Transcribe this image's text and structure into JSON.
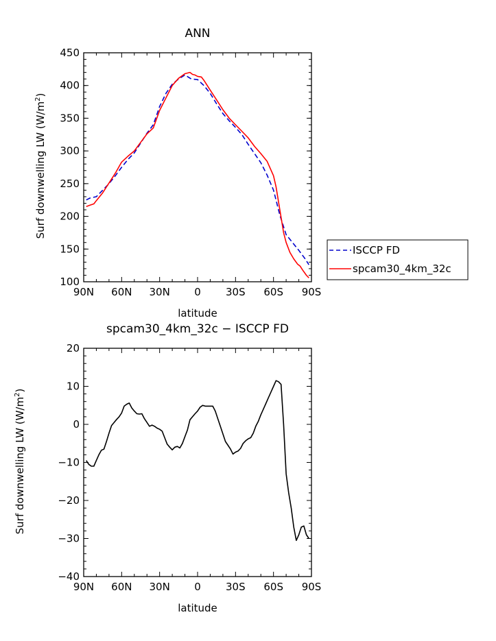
{
  "chart_data": [
    {
      "type": "line",
      "title": "ANN",
      "xlabel": "latitude",
      "ylabel": "Surf downwelling LW (W/m²)",
      "ylabel_base": "Surf downwelling LW (W/m",
      "ylabel_sup": "2",
      "ylabel_close": ")",
      "xlim": [
        90,
        -90
      ],
      "ylim": [
        100,
        450
      ],
      "x_ticks": [
        90,
        60,
        30,
        0,
        -30,
        -60,
        -90
      ],
      "x_tick_labels": [
        "90N",
        "60N",
        "30N",
        "0",
        "30S",
        "60S",
        "90S"
      ],
      "y_ticks": [
        100,
        150,
        200,
        250,
        300,
        350,
        400,
        450
      ],
      "y_tick_labels": [
        "100",
        "150",
        "200",
        "250",
        "300",
        "350",
        "400",
        "450"
      ],
      "legend_position": "outside-right",
      "series": [
        {
          "name": "ISCCP FD",
          "color": "#0000cc",
          "style": "dashed",
          "x": [
            88,
            85,
            80,
            75,
            70,
            65,
            60,
            55,
            50,
            45,
            40,
            35,
            30,
            25,
            20,
            15,
            10,
            5,
            0,
            -5,
            -10,
            -15,
            -20,
            -25,
            -30,
            -35,
            -40,
            -45,
            -50,
            -55,
            -60,
            -65,
            -70,
            -75,
            -80,
            -85,
            -88
          ],
          "values": [
            225,
            228,
            230,
            240,
            250,
            262,
            275,
            287,
            297,
            312,
            327,
            340,
            368,
            388,
            402,
            410,
            416,
            410,
            409,
            400,
            388,
            372,
            357,
            346,
            336,
            325,
            310,
            296,
            282,
            263,
            240,
            202,
            172,
            160,
            148,
            135,
            126
          ]
        },
        {
          "name": "spcam30_4km_32c",
          "color": "#ff0000",
          "style": "solid",
          "x": [
            88,
            85,
            82,
            80,
            75,
            70,
            65,
            60,
            55,
            50,
            45,
            40,
            35,
            30,
            25,
            20,
            15,
            10,
            6,
            4,
            2,
            0,
            -3,
            -5,
            -10,
            -15,
            -20,
            -25,
            -30,
            -35,
            -40,
            -45,
            -50,
            -55,
            -60,
            -62,
            -65,
            -68,
            -70,
            -73,
            -76,
            -79,
            -81,
            -83,
            -86,
            -88
          ],
          "values": [
            215,
            217,
            219,
            224,
            236,
            251,
            266,
            283,
            292,
            300,
            313,
            326,
            335,
            362,
            381,
            400,
            411,
            418,
            420,
            417,
            416,
            414,
            413,
            408,
            393,
            378,
            363,
            350,
            340,
            330,
            320,
            307,
            296,
            284,
            262,
            245,
            210,
            175,
            160,
            145,
            135,
            127,
            124,
            118,
            110,
            106
          ]
        }
      ]
    },
    {
      "type": "line",
      "title": "spcam30_4km_32c − ISCCP FD",
      "xlabel": "latitude",
      "ylabel": "Surf downwelling LW (W/m²)",
      "ylabel_base": "Surf downwelling LW (W/m",
      "ylabel_sup": "2",
      "ylabel_close": ")",
      "xlim": [
        90,
        -90
      ],
      "ylim": [
        -40,
        20
      ],
      "x_ticks": [
        90,
        60,
        30,
        0,
        -30,
        -60,
        -90
      ],
      "x_tick_labels": [
        "90N",
        "60N",
        "30N",
        "0",
        "30S",
        "60S",
        "90S"
      ],
      "y_ticks": [
        -40,
        -30,
        -20,
        -10,
        0,
        10,
        20
      ],
      "y_tick_labels": [
        "−40",
        "−30",
        "−20",
        "−10",
        "0",
        "10",
        "20"
      ],
      "series": [
        {
          "color": "#000000",
          "style": "solid",
          "x": [
            88,
            86,
            84,
            82,
            80,
            78,
            76,
            74,
            72,
            70,
            68,
            66,
            64,
            62,
            60,
            58,
            56,
            54,
            52,
            50,
            48,
            46,
            44,
            42,
            40,
            38,
            36,
            34,
            32,
            30,
            28,
            26,
            24,
            22,
            20,
            18,
            16,
            14,
            12,
            10,
            8,
            6,
            4,
            2,
            0,
            -2,
            -4,
            -6,
            -8,
            -10,
            -12,
            -14,
            -16,
            -18,
            -20,
            -22,
            -24,
            -26,
            -28,
            -30,
            -32,
            -34,
            -36,
            -38,
            -40,
            -42,
            -44,
            -46,
            -48,
            -50,
            -52,
            -54,
            -56,
            -58,
            -60,
            -62,
            -64,
            -66,
            -68,
            -70,
            -72,
            -74,
            -76,
            -78,
            -80,
            -82,
            -84,
            -86,
            -88
          ],
          "values": [
            -9.5,
            -10.5,
            -11,
            -11,
            -9.5,
            -8,
            -6.8,
            -6.5,
            -4.5,
            -2.3,
            -0.3,
            0.5,
            1.3,
            2,
            3,
            4.8,
            5.3,
            5.6,
            4.3,
            3.5,
            2.8,
            2.7,
            2.8,
            1.5,
            0.5,
            -0.5,
            -0.2,
            -0.5,
            -1,
            -1.3,
            -1.8,
            -3.5,
            -5.2,
            -6,
            -6.7,
            -6,
            -5.8,
            -6.2,
            -5,
            -3.2,
            -1.5,
            1.2,
            2,
            2.8,
            3.5,
            4.5,
            5,
            4.8,
            4.8,
            4.8,
            4.8,
            3.5,
            1.5,
            -0.5,
            -2.5,
            -4.5,
            -5.5,
            -6.5,
            -7.8,
            -7.3,
            -7,
            -6.3,
            -5,
            -4.3,
            -3.8,
            -3.5,
            -2.3,
            -0.5,
            0.8,
            2.5,
            4,
            5.5,
            7,
            8.5,
            10,
            11.5,
            11.2,
            10.5,
            0,
            -13,
            -18,
            -22,
            -27,
            -30.5,
            -29,
            -27,
            -26.7,
            -29,
            -30
          ]
        }
      ]
    }
  ],
  "legend": {
    "items": [
      {
        "label": "ISCCP FD",
        "color": "#0000cc",
        "style": "dashed"
      },
      {
        "label": "spcam30_4km_32c",
        "color": "#ff0000",
        "style": "solid"
      }
    ]
  }
}
